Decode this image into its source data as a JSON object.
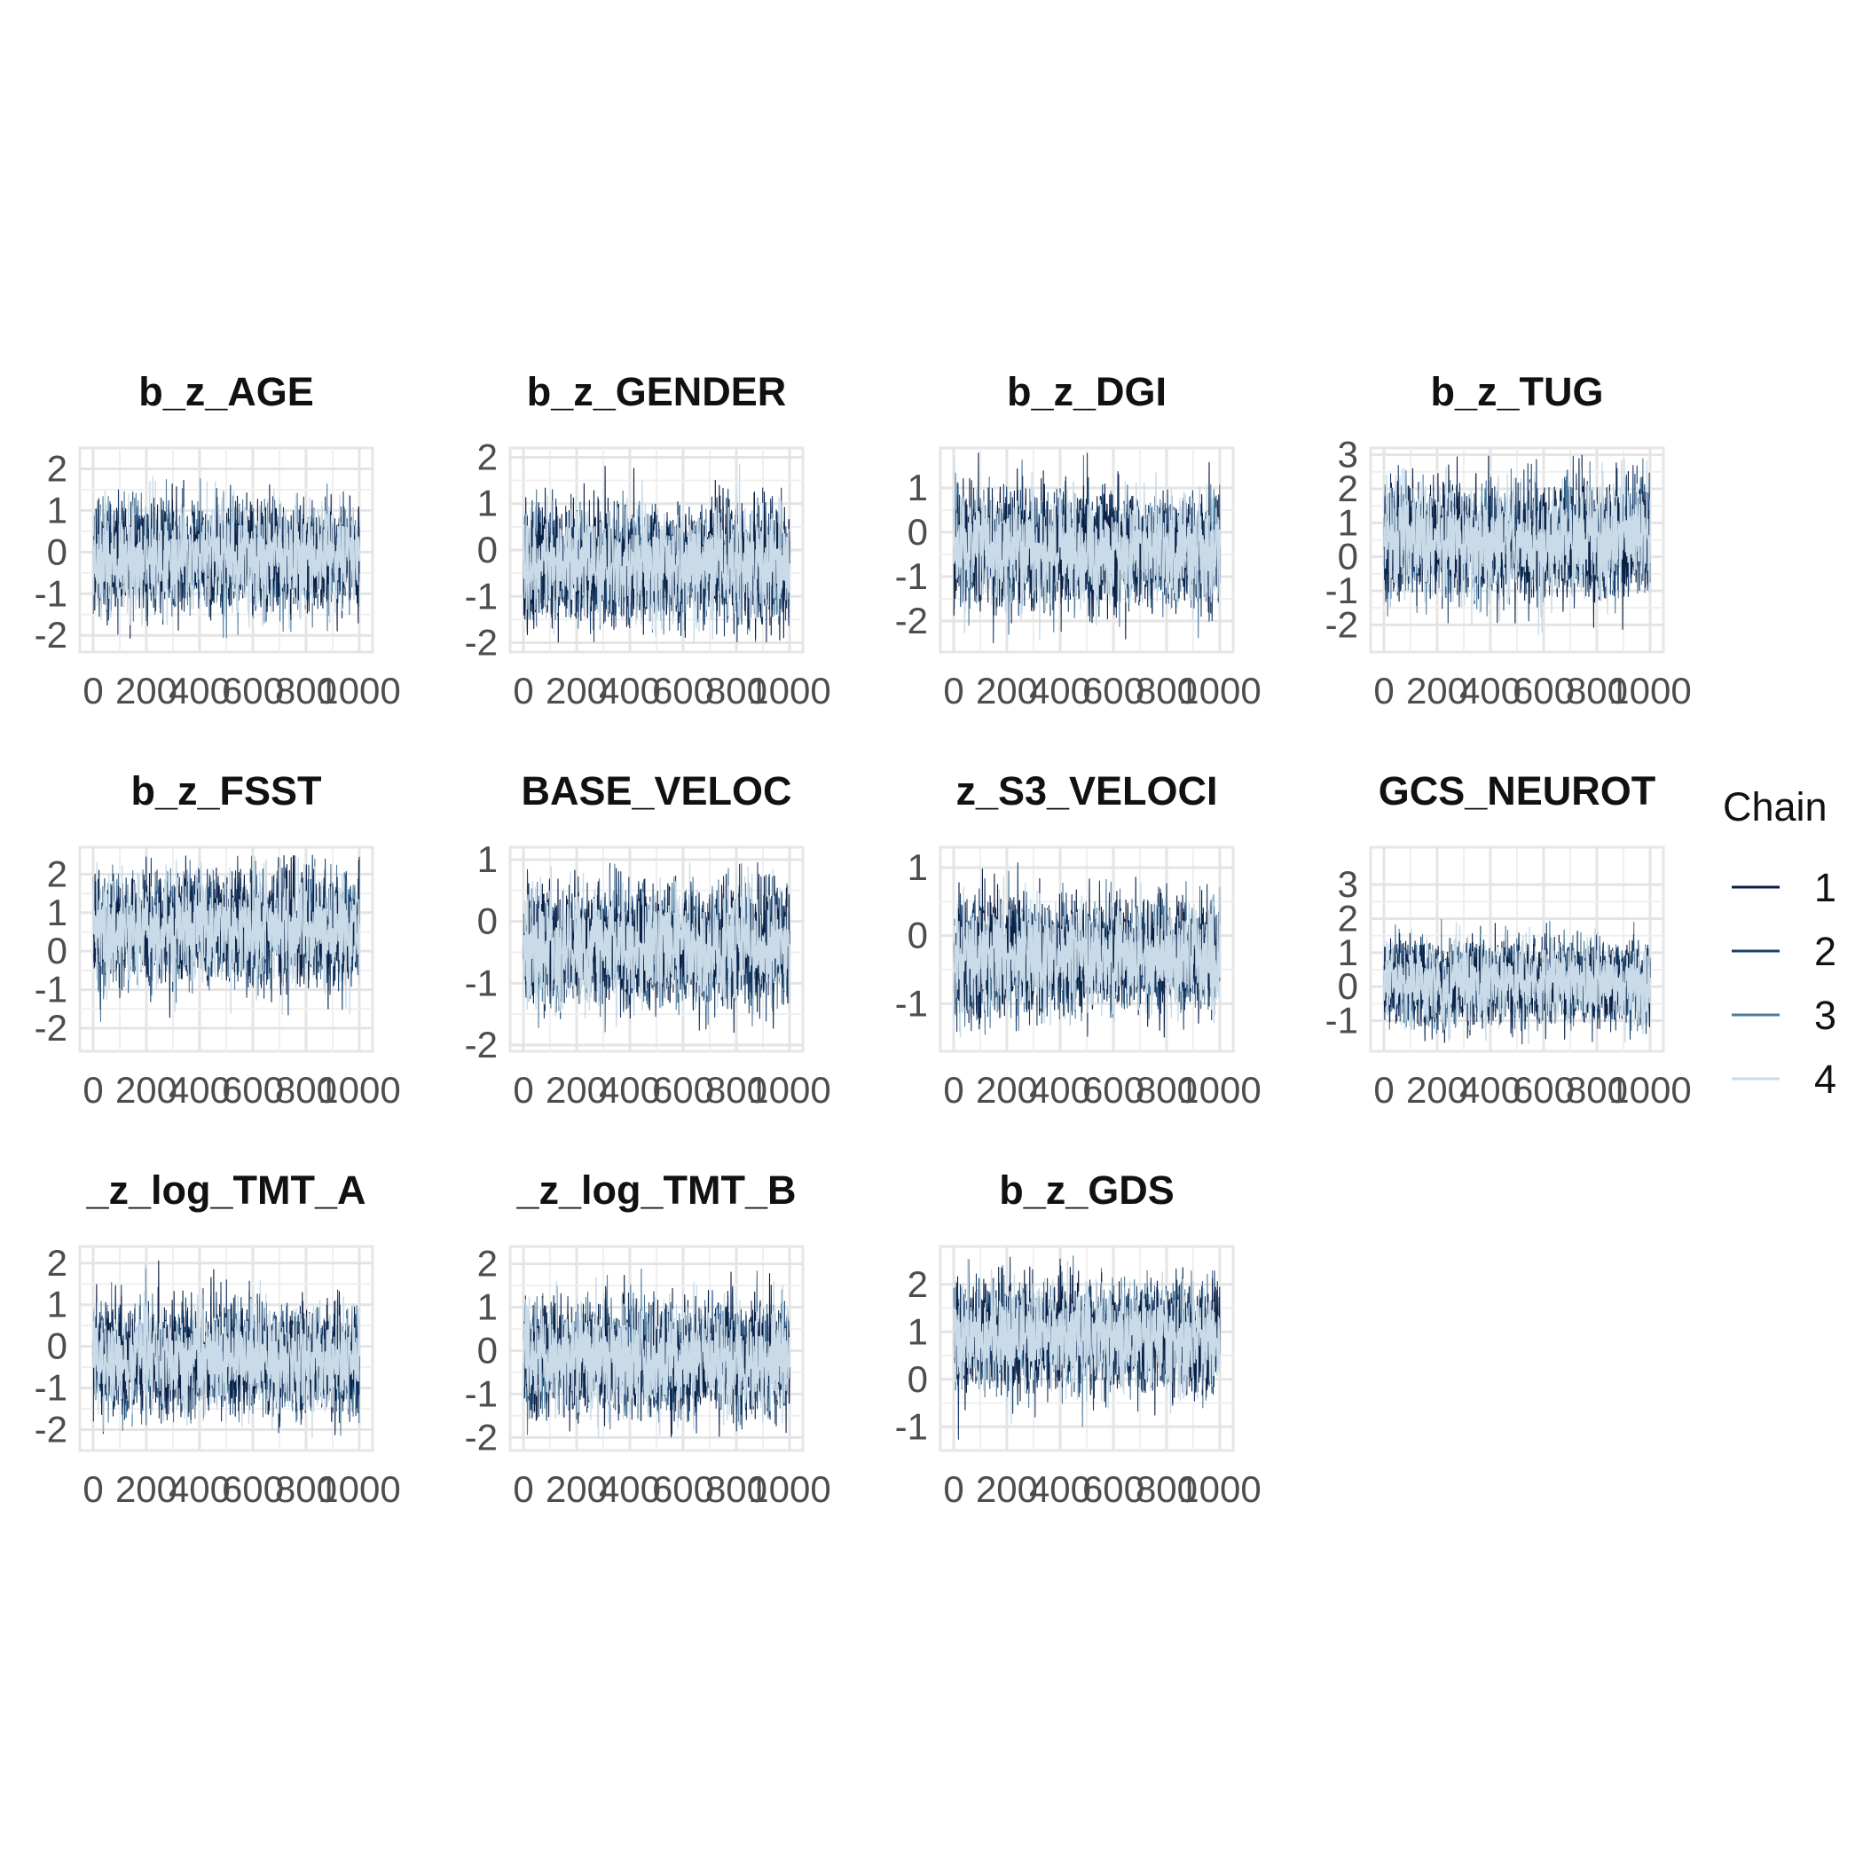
{
  "chart_data": {
    "type": "line",
    "legend": {
      "title": "Chain",
      "position": "right"
    },
    "series": [
      {
        "name": "1",
        "color": "#0b1f45"
      },
      {
        "name": "2",
        "color": "#1a3f6b"
      },
      {
        "name": "3",
        "color": "#4d7b9c"
      },
      {
        "name": "4",
        "color": "#c9dbe8"
      }
    ],
    "x_ticks": [
      0,
      200,
      400,
      600,
      800,
      1000
    ],
    "x_tick_labels": [
      "0",
      "200",
      "400",
      "600",
      "800",
      "1000"
    ],
    "xlim": [
      -50,
      1050
    ],
    "n_iterations": 1000,
    "grid": true,
    "panels": [
      {
        "title": "b_z_AGE",
        "ylim": [
          -2.4,
          2.5
        ],
        "yticks": [
          -2,
          -1,
          0,
          1,
          2
        ],
        "ytick_labels": [
          "-2",
          "-1",
          "0",
          "1",
          "2"
        ],
        "center": -0.1,
        "spread": 0.6,
        "min": -2.1,
        "max": 2.4
      },
      {
        "title": "b_z_GENDER",
        "ylim": [
          -2.2,
          2.2
        ],
        "yticks": [
          -2,
          -1,
          0,
          1,
          2
        ],
        "ytick_labels": [
          "-2",
          "-1",
          "0",
          "1",
          "2"
        ],
        "center": -0.3,
        "spread": 0.6,
        "min": -2.0,
        "max": 1.9
      },
      {
        "title": "b_z_DGI",
        "ylim": [
          -2.7,
          1.9
        ],
        "yticks": [
          -2,
          -1,
          0,
          1
        ],
        "ytick_labels": [
          "-2",
          "-1",
          "0",
          "1"
        ],
        "center": -0.4,
        "spread": 0.6,
        "min": -2.5,
        "max": 1.8
      },
      {
        "title": "b_z_TUG",
        "ylim": [
          -2.8,
          3.2
        ],
        "yticks": [
          -2,
          -1,
          0,
          1,
          2,
          3
        ],
        "ytick_labels": [
          "-2",
          "-1",
          "0",
          "1",
          "2",
          "3"
        ],
        "center": 0.5,
        "spread": 0.8,
        "min": -2.4,
        "max": 3.0
      },
      {
        "title": "b_z_FSST",
        "ylim": [
          -2.6,
          2.7
        ],
        "yticks": [
          -2,
          -1,
          0,
          1,
          2
        ],
        "ytick_labels": [
          "-2",
          "-1",
          "0",
          "1",
          "2"
        ],
        "center": 0.6,
        "spread": 0.7,
        "min": -2.3,
        "max": 2.5
      },
      {
        "title": "BASE_VELOC",
        "ylim": [
          -2.1,
          1.2
        ],
        "yticks": [
          -2,
          -1,
          0,
          1
        ],
        "ytick_labels": [
          "-2",
          "-1",
          "0",
          "1"
        ],
        "center": -0.4,
        "spread": 0.45,
        "min": -2.0,
        "max": 1.0
      },
      {
        "title": "z_S3_VELOCI",
        "ylim": [
          -1.7,
          1.3
        ],
        "yticks": [
          -1,
          0,
          1
        ],
        "ytick_labels": [
          "-1",
          "0",
          "1"
        ],
        "center": -0.3,
        "spread": 0.4,
        "min": -1.5,
        "max": 1.1
      },
      {
        "title": "GCS_NEUROT",
        "ylim": [
          -1.9,
          4.1
        ],
        "yticks": [
          -1,
          0,
          1,
          2,
          3
        ],
        "ytick_labels": [
          "-1",
          "0",
          "1",
          "2",
          "3"
        ],
        "center": 0.1,
        "spread": 0.6,
        "min": -1.7,
        "max": 3.6
      },
      {
        "title": "_z_log_TMT_A",
        "ylim": [
          -2.5,
          2.4
        ],
        "yticks": [
          -2,
          -1,
          0,
          1,
          2
        ],
        "ytick_labels": [
          "-2",
          "-1",
          "0",
          "1",
          "2"
        ],
        "center": -0.3,
        "spread": 0.6,
        "min": -2.2,
        "max": 2.3
      },
      {
        "title": "_z_log_TMT_B",
        "ylim": [
          -2.3,
          2.4
        ],
        "yticks": [
          -2,
          -1,
          0,
          1,
          2
        ],
        "ytick_labels": [
          "-2",
          "-1",
          "0",
          "1",
          "2"
        ],
        "center": -0.2,
        "spread": 0.6,
        "min": -2.0,
        "max": 2.3
      },
      {
        "title": "b_z_GDS",
        "ylim": [
          -1.5,
          2.8
        ],
        "yticks": [
          -1,
          0,
          1,
          2
        ],
        "ytick_labels": [
          "-1",
          "0",
          "1",
          "2"
        ],
        "center": 0.9,
        "spread": 0.55,
        "min": -1.3,
        "max": 2.6
      }
    ]
  }
}
